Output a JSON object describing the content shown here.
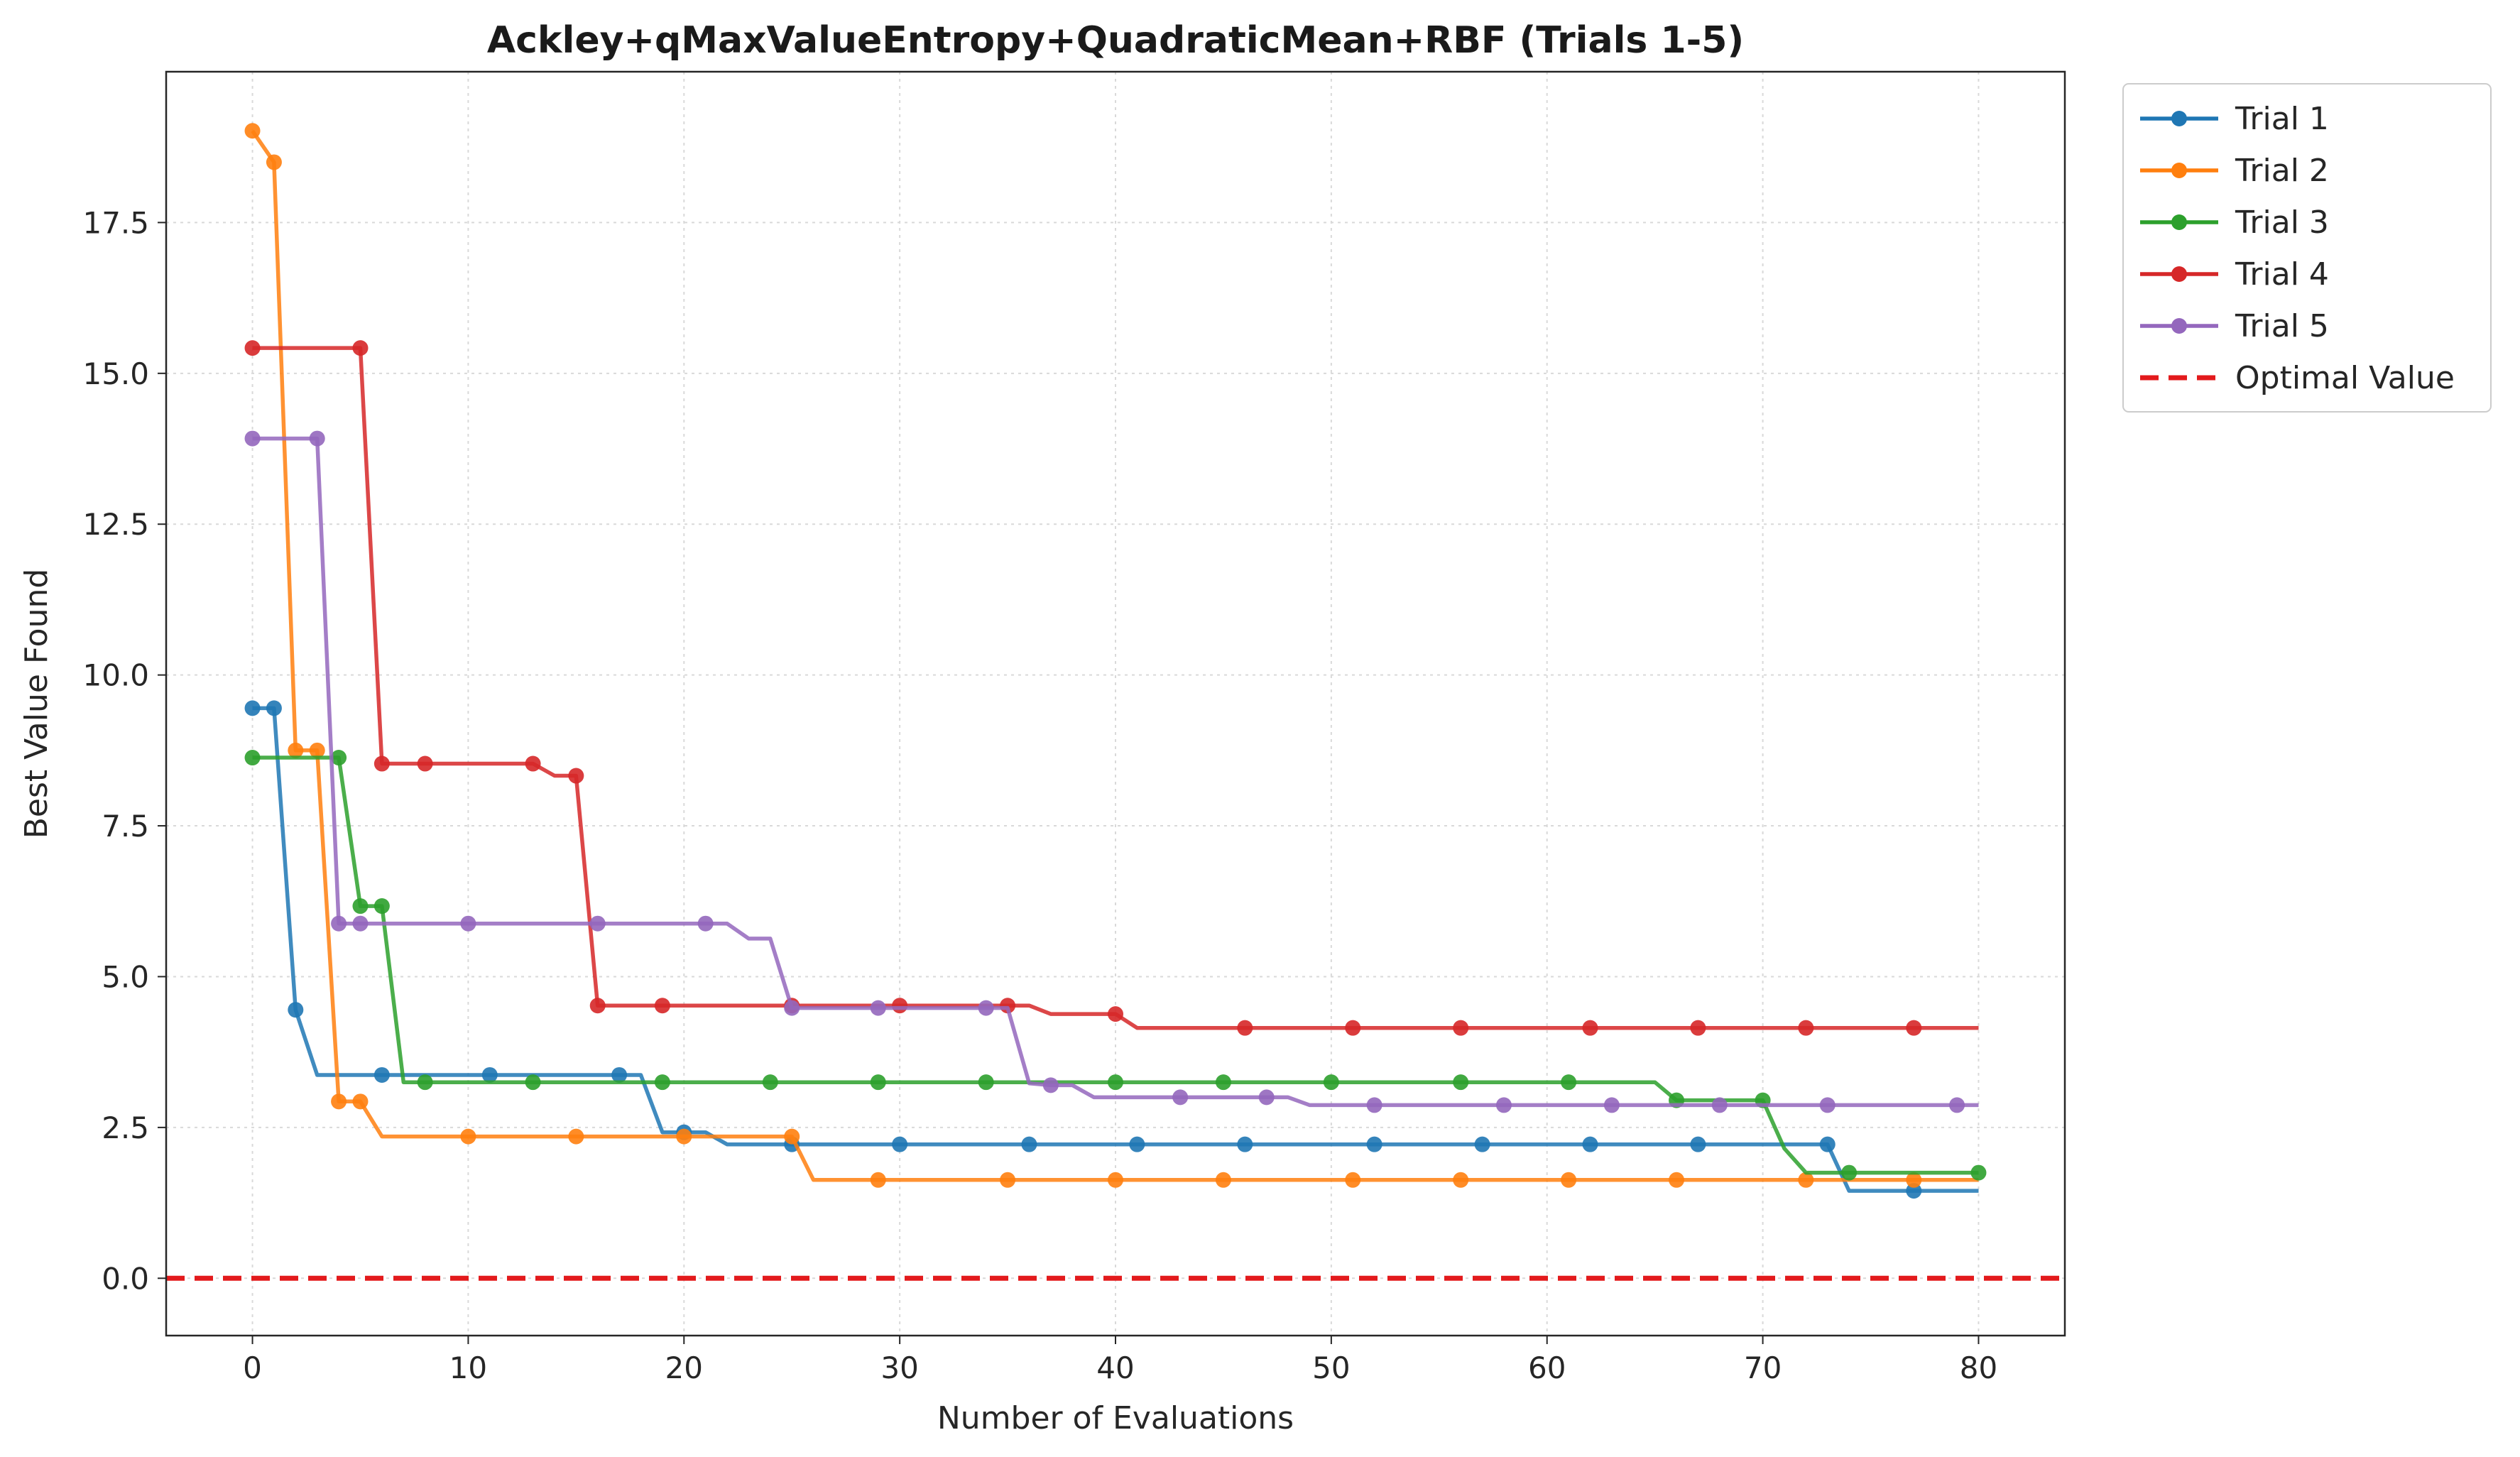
{
  "chart_data": {
    "type": "line",
    "title": "Ackley+qMaxValueEntropy+QuadraticMean+RBF (Trials 1-5)",
    "xlabel": "Number of Evaluations",
    "ylabel": "Best Value Found",
    "xlim": [
      -4,
      84
    ],
    "ylim": [
      -0.95,
      20.0
    ],
    "xticks": [
      0,
      10,
      20,
      30,
      40,
      50,
      60,
      70,
      80
    ],
    "yticks": [
      0.0,
      2.5,
      5.0,
      7.5,
      10.0,
      12.5,
      15.0,
      17.5
    ],
    "ytick_labels": [
      "0.0",
      "2.5",
      "5.0",
      "7.5",
      "10.0",
      "12.5",
      "15.0",
      "17.5"
    ],
    "grid": true,
    "legend_position": "outside top-right",
    "series": [
      {
        "name": "Trial 1",
        "color": "#1f77b4",
        "x": [
          0,
          1,
          2,
          3,
          4,
          5,
          6,
          7,
          8,
          9,
          10,
          11,
          12,
          13,
          14,
          15,
          16,
          17,
          18,
          19,
          20,
          21,
          22,
          23,
          24,
          25,
          26,
          27,
          28,
          29,
          30,
          31,
          32,
          33,
          34,
          35,
          36,
          37,
          38,
          39,
          40,
          41,
          42,
          43,
          44,
          45,
          46,
          47,
          48,
          49,
          50,
          51,
          52,
          53,
          54,
          55,
          56,
          57,
          58,
          59,
          60,
          61,
          62,
          63,
          64,
          65,
          66,
          67,
          68,
          69,
          70,
          71,
          72,
          73,
          74,
          75,
          76,
          77,
          78,
          79,
          80
        ],
        "y": [
          9.45,
          9.45,
          4.45,
          3.37,
          3.37,
          3.37,
          3.37,
          3.37,
          3.37,
          3.37,
          3.37,
          3.37,
          3.37,
          3.37,
          3.37,
          3.37,
          3.37,
          3.37,
          3.37,
          2.42,
          2.42,
          2.42,
          2.22,
          2.22,
          2.22,
          2.22,
          2.22,
          2.22,
          2.22,
          2.22,
          2.22,
          2.22,
          2.22,
          2.22,
          2.22,
          2.22,
          2.22,
          2.22,
          2.22,
          2.22,
          2.22,
          2.22,
          2.22,
          2.22,
          2.22,
          2.22,
          2.22,
          2.22,
          2.22,
          2.22,
          2.22,
          2.22,
          2.22,
          2.22,
          2.22,
          2.22,
          2.22,
          2.22,
          2.22,
          2.22,
          2.22,
          2.22,
          2.22,
          2.22,
          2.22,
          2.22,
          2.22,
          2.22,
          2.22,
          2.22,
          2.22,
          2.22,
          2.22,
          2.22,
          1.45,
          1.45,
          1.45,
          1.45,
          1.45,
          1.45,
          1.45
        ],
        "markers_x": [
          0,
          1,
          2,
          6,
          11,
          17,
          20,
          25,
          30,
          36,
          41,
          46,
          52,
          57,
          62,
          67,
          73,
          77
        ]
      },
      {
        "name": "Trial 2",
        "color": "#ff7f0e",
        "x": [
          0,
          1,
          2,
          3,
          4,
          5,
          6,
          7,
          8,
          9,
          10,
          11,
          12,
          13,
          14,
          15,
          16,
          17,
          18,
          19,
          20,
          21,
          22,
          23,
          24,
          25,
          26,
          27,
          28,
          29,
          30,
          31,
          32,
          33,
          34,
          35,
          36,
          37,
          38,
          39,
          40,
          41,
          42,
          43,
          44,
          45,
          46,
          47,
          48,
          49,
          50,
          51,
          52,
          53,
          54,
          55,
          56,
          57,
          58,
          59,
          60,
          61,
          62,
          63,
          64,
          65,
          66,
          67,
          68,
          69,
          70,
          71,
          72,
          73,
          74,
          75,
          76,
          77,
          78,
          79,
          80
        ],
        "y": [
          19.02,
          18.5,
          8.75,
          8.75,
          2.93,
          2.93,
          2.35,
          2.35,
          2.35,
          2.35,
          2.35,
          2.35,
          2.35,
          2.35,
          2.35,
          2.35,
          2.35,
          2.35,
          2.35,
          2.35,
          2.35,
          2.35,
          2.35,
          2.35,
          2.35,
          2.35,
          1.63,
          1.63,
          1.63,
          1.63,
          1.63,
          1.63,
          1.63,
          1.63,
          1.63,
          1.63,
          1.63,
          1.63,
          1.63,
          1.63,
          1.63,
          1.63,
          1.63,
          1.63,
          1.63,
          1.63,
          1.63,
          1.63,
          1.63,
          1.63,
          1.63,
          1.63,
          1.63,
          1.63,
          1.63,
          1.63,
          1.63,
          1.63,
          1.63,
          1.63,
          1.63,
          1.63,
          1.63,
          1.63,
          1.63,
          1.63,
          1.63,
          1.63,
          1.63,
          1.63,
          1.63,
          1.63,
          1.63,
          1.63,
          1.63,
          1.63,
          1.63,
          1.63,
          1.63,
          1.63,
          1.63
        ],
        "markers_x": [
          0,
          1,
          2,
          3,
          4,
          5,
          10,
          15,
          20,
          25,
          29,
          35,
          40,
          45,
          51,
          56,
          61,
          66,
          72,
          77
        ]
      },
      {
        "name": "Trial 3",
        "color": "#2ca02c",
        "x": [
          0,
          1,
          2,
          3,
          4,
          5,
          6,
          7,
          8,
          9,
          10,
          11,
          12,
          13,
          14,
          15,
          16,
          17,
          18,
          19,
          20,
          21,
          22,
          23,
          24,
          25,
          26,
          27,
          28,
          29,
          30,
          31,
          32,
          33,
          34,
          35,
          36,
          37,
          38,
          39,
          40,
          41,
          42,
          43,
          44,
          45,
          46,
          47,
          48,
          49,
          50,
          51,
          52,
          53,
          54,
          55,
          56,
          57,
          58,
          59,
          60,
          61,
          62,
          63,
          64,
          65,
          66,
          67,
          68,
          69,
          70,
          71,
          72,
          73,
          74,
          75,
          76,
          77,
          78,
          79,
          80
        ],
        "y": [
          8.63,
          8.63,
          8.63,
          8.63,
          8.63,
          6.17,
          6.17,
          3.25,
          3.25,
          3.25,
          3.25,
          3.25,
          3.25,
          3.25,
          3.25,
          3.25,
          3.25,
          3.25,
          3.25,
          3.25,
          3.25,
          3.25,
          3.25,
          3.25,
          3.25,
          3.25,
          3.25,
          3.25,
          3.25,
          3.25,
          3.25,
          3.25,
          3.25,
          3.25,
          3.25,
          3.25,
          3.25,
          3.25,
          3.25,
          3.25,
          3.25,
          3.25,
          3.25,
          3.25,
          3.25,
          3.25,
          3.25,
          3.25,
          3.25,
          3.25,
          3.25,
          3.25,
          3.25,
          3.25,
          3.25,
          3.25,
          3.25,
          3.25,
          3.25,
          3.25,
          3.25,
          3.25,
          3.25,
          3.25,
          3.25,
          3.25,
          2.95,
          2.95,
          2.95,
          2.95,
          2.95,
          2.15,
          1.75,
          1.75,
          1.75,
          1.75,
          1.75,
          1.75,
          1.75,
          1.75,
          1.75
        ],
        "markers_x": [
          0,
          4,
          5,
          6,
          8,
          13,
          19,
          24,
          29,
          34,
          40,
          45,
          50,
          56,
          61,
          66,
          70,
          74,
          80
        ]
      },
      {
        "name": "Trial 4",
        "color": "#d62728",
        "x": [
          0,
          1,
          2,
          3,
          4,
          5,
          6,
          7,
          8,
          9,
          10,
          11,
          12,
          13,
          14,
          15,
          16,
          17,
          18,
          19,
          20,
          21,
          22,
          23,
          24,
          25,
          26,
          27,
          28,
          29,
          30,
          31,
          32,
          33,
          34,
          35,
          36,
          37,
          38,
          39,
          40,
          41,
          42,
          43,
          44,
          45,
          46,
          47,
          48,
          49,
          50,
          51,
          52,
          53,
          54,
          55,
          56,
          57,
          58,
          59,
          60,
          61,
          62,
          63,
          64,
          65,
          66,
          67,
          68,
          69,
          70,
          71,
          72,
          73,
          74,
          75,
          76,
          77,
          78,
          79,
          80
        ],
        "y": [
          15.42,
          15.42,
          15.42,
          15.42,
          15.42,
          15.42,
          8.53,
          8.53,
          8.53,
          8.53,
          8.53,
          8.53,
          8.53,
          8.53,
          8.33,
          8.33,
          4.52,
          4.52,
          4.52,
          4.52,
          4.52,
          4.52,
          4.52,
          4.52,
          4.52,
          4.52,
          4.52,
          4.52,
          4.52,
          4.52,
          4.52,
          4.52,
          4.52,
          4.52,
          4.52,
          4.52,
          4.52,
          4.38,
          4.38,
          4.38,
          4.38,
          4.15,
          4.15,
          4.15,
          4.15,
          4.15,
          4.15,
          4.15,
          4.15,
          4.15,
          4.15,
          4.15,
          4.15,
          4.15,
          4.15,
          4.15,
          4.15,
          4.15,
          4.15,
          4.15,
          4.15,
          4.15,
          4.15,
          4.15,
          4.15,
          4.15,
          4.15,
          4.15,
          4.15,
          4.15,
          4.15,
          4.15,
          4.15,
          4.15,
          4.15,
          4.15,
          4.15,
          4.15,
          4.15,
          4.15,
          4.15
        ],
        "markers_x": [
          0,
          5,
          6,
          8,
          13,
          15,
          16,
          19,
          25,
          30,
          35,
          40,
          46,
          51,
          56,
          62,
          67,
          72,
          77
        ]
      },
      {
        "name": "Trial 5",
        "color": "#9467bd",
        "x": [
          0,
          1,
          2,
          3,
          4,
          5,
          6,
          7,
          8,
          9,
          10,
          11,
          12,
          13,
          14,
          15,
          16,
          17,
          18,
          19,
          20,
          21,
          22,
          23,
          24,
          25,
          26,
          27,
          28,
          29,
          30,
          31,
          32,
          33,
          34,
          35,
          36,
          37,
          38,
          39,
          40,
          41,
          42,
          43,
          44,
          45,
          46,
          47,
          48,
          49,
          50,
          51,
          52,
          53,
          54,
          55,
          56,
          57,
          58,
          59,
          60,
          61,
          62,
          63,
          64,
          65,
          66,
          67,
          68,
          69,
          70,
          71,
          72,
          73,
          74,
          75,
          76,
          77,
          78,
          79,
          80
        ],
        "y": [
          13.92,
          13.92,
          13.92,
          13.92,
          5.88,
          5.88,
          5.88,
          5.88,
          5.88,
          5.88,
          5.88,
          5.88,
          5.88,
          5.88,
          5.88,
          5.88,
          5.88,
          5.88,
          5.88,
          5.88,
          5.88,
          5.88,
          5.88,
          5.63,
          5.63,
          4.48,
          4.48,
          4.48,
          4.48,
          4.48,
          4.48,
          4.48,
          4.48,
          4.48,
          4.48,
          4.48,
          3.23,
          3.2,
          3.2,
          3.0,
          3.0,
          3.0,
          3.0,
          3.0,
          3.0,
          3.0,
          3.0,
          3.0,
          3.0,
          2.87,
          2.87,
          2.87,
          2.87,
          2.87,
          2.87,
          2.87,
          2.87,
          2.87,
          2.87,
          2.87,
          2.87,
          2.87,
          2.87,
          2.87,
          2.87,
          2.87,
          2.87,
          2.87,
          2.87,
          2.87,
          2.87,
          2.87,
          2.87,
          2.87,
          2.87,
          2.87,
          2.87,
          2.87,
          2.87,
          2.87,
          2.87
        ],
        "markers_x": [
          0,
          3,
          4,
          5,
          10,
          16,
          21,
          25,
          29,
          34,
          37,
          43,
          47,
          52,
          58,
          63,
          68,
          73,
          79
        ]
      }
    ],
    "optimal_value": {
      "name": "Optimal Value",
      "y": 0.0,
      "color": "#e31a1c"
    }
  }
}
